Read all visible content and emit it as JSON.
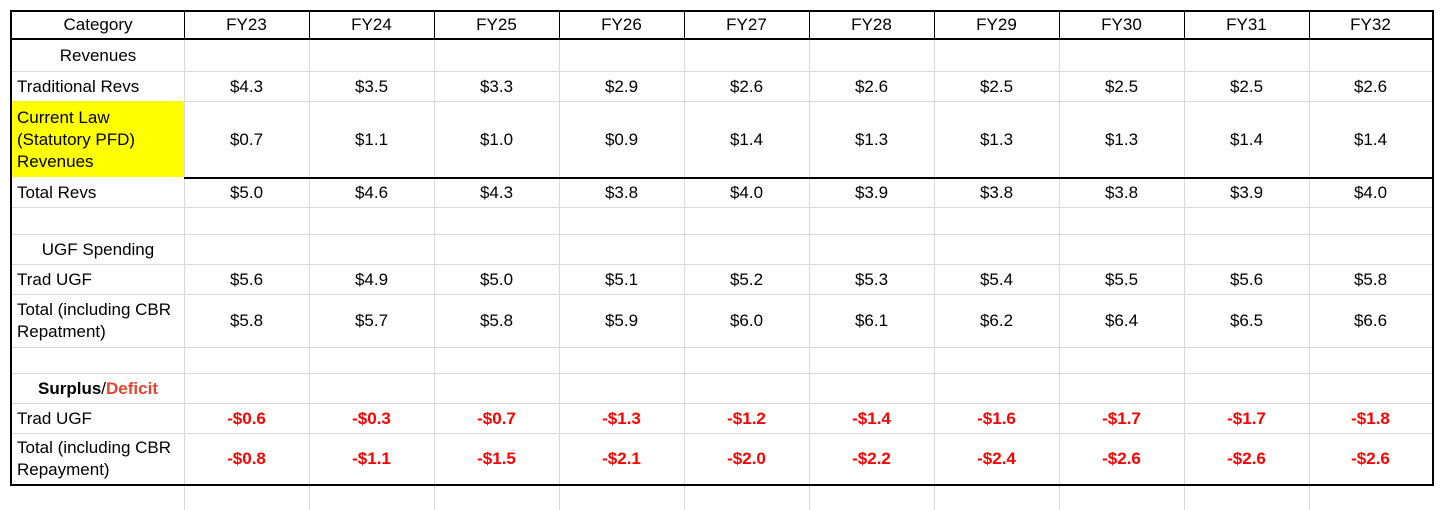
{
  "header": {
    "category_label": "Category",
    "years": [
      "FY23",
      "FY24",
      "FY25",
      "FY26",
      "FY27",
      "FY28",
      "FY29",
      "FY30",
      "FY31",
      "FY32"
    ]
  },
  "revenues": {
    "section_label": "Revenues",
    "traditional": {
      "label": "Traditional Revs",
      "values": [
        "$4.3",
        "$3.5",
        "$3.3",
        "$2.9",
        "$2.6",
        "$2.6",
        "$2.5",
        "$2.5",
        "$2.5",
        "$2.6"
      ]
    },
    "current_law": {
      "label": "Current Law (Statutory PFD) Revenues",
      "values": [
        "$0.7",
        "$1.1",
        "$1.0",
        "$0.9",
        "$1.4",
        "$1.3",
        "$1.3",
        "$1.3",
        "$1.4",
        "$1.4"
      ],
      "highlight_color": "#ffff00"
    },
    "total": {
      "label": "Total Revs",
      "values": [
        "$5.0",
        "$4.6",
        "$4.3",
        "$3.8",
        "$4.0",
        "$3.9",
        "$3.8",
        "$3.8",
        "$3.9",
        "$4.0"
      ]
    }
  },
  "spending": {
    "section_label": "UGF Spending",
    "trad": {
      "label": "Trad UGF",
      "values": [
        "$5.6",
        "$4.9",
        "$5.0",
        "$5.1",
        "$5.2",
        "$5.3",
        "$5.4",
        "$5.5",
        "$5.6",
        "$5.8"
      ]
    },
    "total": {
      "label": "Total (including CBR Repatment)",
      "values": [
        "$5.8",
        "$5.7",
        "$5.8",
        "$5.9",
        "$6.0",
        "$6.1",
        "$6.2",
        "$6.4",
        "$6.5",
        "$6.6"
      ]
    }
  },
  "balance": {
    "section_label_surplus": "Surplus",
    "section_label_sep": "/",
    "section_label_deficit": "Deficit",
    "trad": {
      "label": "Trad UGF",
      "values": [
        "-$0.6",
        "-$0.3",
        "-$0.7",
        "-$1.3",
        "-$1.2",
        "-$1.4",
        "-$1.6",
        "-$1.7",
        "-$1.7",
        "-$1.8"
      ]
    },
    "total": {
      "label": "Total (including CBR Repayment)",
      "values": [
        "-$0.8",
        "-$1.1",
        "-$1.5",
        "-$2.1",
        "-$2.0",
        "-$2.2",
        "-$2.4",
        "-$2.6",
        "-$2.6",
        "-$2.6"
      ]
    }
  },
  "colors": {
    "negative": "#ff0000",
    "deficit_label": "#e8432f",
    "highlight": "#ffff00",
    "gridline": "#d9d9d9"
  }
}
